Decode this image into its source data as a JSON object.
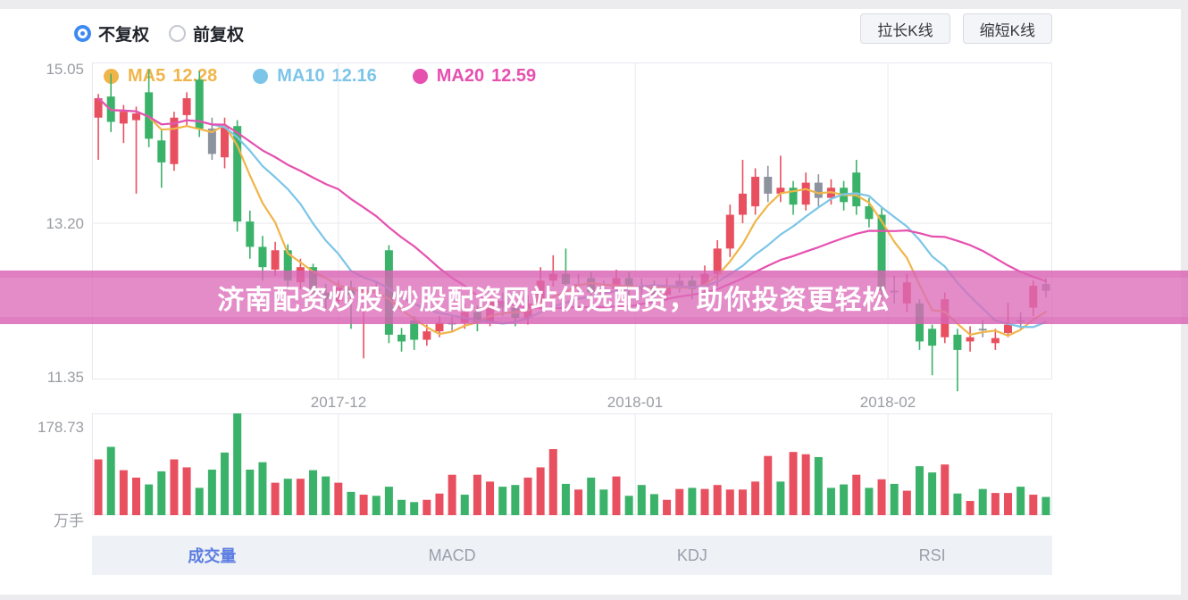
{
  "header": {
    "radios": [
      {
        "label": "不复权",
        "selected": true
      },
      {
        "label": "前复权",
        "selected": false
      }
    ],
    "buttons": [
      {
        "label": "拉长K线"
      },
      {
        "label": "缩短K线"
      }
    ]
  },
  "banner": {
    "text": "济南配资炒股 炒股配资网站优选配资，助你投资更轻松"
  },
  "tabs": [
    {
      "label": "成交量",
      "active": true
    },
    {
      "label": "MACD",
      "active": false
    },
    {
      "label": "KDJ",
      "active": false
    },
    {
      "label": "RSI",
      "active": false
    }
  ],
  "chart_data": {
    "type": "candlestick",
    "title": "",
    "legend": [
      {
        "name": "MA5",
        "value": "12.28",
        "color": "#f0b54a"
      },
      {
        "name": "MA10",
        "value": "12.16",
        "color": "#7cc5e8"
      },
      {
        "name": "MA20",
        "value": "12.59",
        "color": "#e650af"
      }
    ],
    "y_axis": {
      "ticks": [
        "15.05",
        "13.20",
        "11.35"
      ],
      "max": 15.05,
      "min": 11.35
    },
    "x_axis": {
      "ticks": [
        {
          "label": "2017-12",
          "index": 19
        },
        {
          "label": "2018-01",
          "index": 42.5
        },
        {
          "label": "2018-02",
          "index": 62.5
        }
      ]
    },
    "volume_axis": {
      "max_label": "178.73",
      "unit_label": "万手",
      "max": 178.73
    },
    "colors": {
      "up": "#e8505f",
      "down": "#3bb269",
      "flat": "#8d939e",
      "grid": "#e7e9ee",
      "ma5": "#f0b54a",
      "ma10": "#7cc5e8",
      "ma20": "#e650af"
    },
    "candles": [
      [
        14.45,
        14.73,
        13.95,
        14.68,
        ""
      ],
      [
        14.7,
        14.97,
        14.28,
        14.4,
        ""
      ],
      [
        14.38,
        14.6,
        14.15,
        14.52,
        ""
      ],
      [
        14.42,
        14.58,
        13.55,
        14.5,
        ""
      ],
      [
        14.75,
        15.02,
        14.1,
        14.2,
        ""
      ],
      [
        14.18,
        14.3,
        13.62,
        13.92,
        ""
      ],
      [
        13.9,
        14.52,
        13.82,
        14.45,
        ""
      ],
      [
        14.48,
        14.75,
        14.35,
        14.68,
        ""
      ],
      [
        14.9,
        15.0,
        14.22,
        14.32,
        ""
      ],
      [
        14.32,
        14.45,
        13.95,
        14.02,
        "f"
      ],
      [
        13.98,
        14.45,
        13.85,
        14.35,
        ""
      ],
      [
        14.35,
        14.42,
        13.1,
        13.22,
        ""
      ],
      [
        13.22,
        13.35,
        12.78,
        12.92,
        ""
      ],
      [
        12.92,
        13.05,
        12.52,
        12.68,
        ""
      ],
      [
        12.65,
        12.98,
        12.58,
        12.88,
        ""
      ],
      [
        12.88,
        12.95,
        12.4,
        12.52,
        ""
      ],
      [
        12.5,
        12.78,
        12.42,
        12.68,
        ""
      ],
      [
        12.68,
        12.72,
        12.25,
        12.38,
        ""
      ],
      [
        12.38,
        12.48,
        12.18,
        12.3,
        ""
      ],
      [
        12.28,
        12.52,
        12.2,
        12.44,
        ""
      ],
      [
        12.44,
        12.52,
        11.95,
        12.35,
        ""
      ],
      [
        12.35,
        12.46,
        11.6,
        12.42,
        ""
      ],
      [
        12.42,
        12.5,
        12.3,
        12.42,
        "f"
      ],
      [
        12.88,
        12.94,
        11.78,
        11.88,
        ""
      ],
      [
        11.88,
        11.96,
        11.68,
        11.8,
        ""
      ],
      [
        12.05,
        12.1,
        11.7,
        11.82,
        ""
      ],
      [
        11.82,
        12.0,
        11.75,
        11.92,
        ""
      ],
      [
        11.92,
        12.1,
        11.85,
        12.02,
        ""
      ],
      [
        12.02,
        12.1,
        11.92,
        12.02,
        "f"
      ],
      [
        12.02,
        12.25,
        11.95,
        12.15,
        ""
      ],
      [
        12.15,
        12.22,
        11.92,
        12.02,
        ""
      ],
      [
        12.02,
        12.4,
        11.98,
        12.28,
        ""
      ],
      [
        12.28,
        12.38,
        12.1,
        12.2,
        "f"
      ],
      [
        12.2,
        12.28,
        11.98,
        12.08,
        ""
      ],
      [
        12.08,
        12.35,
        12.0,
        12.25,
        ""
      ],
      [
        12.25,
        12.68,
        12.18,
        12.52,
        ""
      ],
      [
        12.52,
        12.82,
        12.45,
        12.6,
        ""
      ],
      [
        12.6,
        12.9,
        12.4,
        12.48,
        ""
      ],
      [
        12.48,
        12.6,
        12.36,
        12.48,
        "f"
      ],
      [
        12.55,
        12.62,
        12.28,
        12.38,
        ""
      ],
      [
        12.38,
        12.52,
        12.3,
        12.42,
        "f"
      ],
      [
        12.42,
        12.65,
        12.35,
        12.55,
        ""
      ],
      [
        12.55,
        12.62,
        12.32,
        12.42,
        ""
      ],
      [
        12.42,
        12.55,
        12.32,
        12.45,
        "f"
      ],
      [
        12.45,
        12.52,
        12.25,
        12.35,
        ""
      ],
      [
        12.35,
        12.55,
        12.28,
        12.45,
        ""
      ],
      [
        12.45,
        12.6,
        12.38,
        12.52,
        "f"
      ],
      [
        12.52,
        12.58,
        12.3,
        12.42,
        ""
      ],
      [
        12.42,
        12.7,
        12.35,
        12.6,
        ""
      ],
      [
        12.6,
        13.0,
        12.45,
        12.9,
        ""
      ],
      [
        12.9,
        13.42,
        12.8,
        13.3,
        ""
      ],
      [
        13.3,
        13.95,
        13.2,
        13.55,
        ""
      ],
      [
        13.4,
        13.85,
        13.3,
        13.75,
        ""
      ],
      [
        13.75,
        13.88,
        13.45,
        13.55,
        "f"
      ],
      [
        13.55,
        14.0,
        13.45,
        13.62,
        ""
      ],
      [
        13.62,
        13.7,
        13.3,
        13.42,
        ""
      ],
      [
        13.42,
        13.8,
        13.35,
        13.68,
        ""
      ],
      [
        13.68,
        13.78,
        13.4,
        13.5,
        "f"
      ],
      [
        13.5,
        13.72,
        13.42,
        13.62,
        ""
      ],
      [
        13.62,
        13.7,
        13.35,
        13.45,
        ""
      ],
      [
        13.8,
        13.95,
        13.3,
        13.4,
        ""
      ],
      [
        13.4,
        13.5,
        13.15,
        13.25,
        ""
      ],
      [
        13.3,
        13.38,
        12.3,
        12.4,
        ""
      ],
      [
        12.4,
        12.58,
        12.25,
        12.4,
        "f"
      ],
      [
        12.25,
        12.6,
        12.15,
        12.5,
        ""
      ],
      [
        12.25,
        12.3,
        11.7,
        11.8,
        ""
      ],
      [
        11.95,
        12.0,
        11.4,
        11.75,
        ""
      ],
      [
        11.85,
        12.38,
        11.78,
        12.3,
        ""
      ],
      [
        11.88,
        11.95,
        11.21,
        11.7,
        ""
      ],
      [
        11.8,
        11.98,
        11.68,
        11.85,
        ""
      ],
      [
        11.95,
        12.05,
        11.85,
        11.95,
        "f"
      ],
      [
        11.78,
        11.95,
        11.7,
        11.84,
        ""
      ],
      [
        11.9,
        12.26,
        11.85,
        12.0,
        ""
      ],
      [
        12.05,
        12.15,
        11.95,
        12.05,
        "f"
      ],
      [
        12.2,
        12.52,
        12.1,
        12.46,
        ""
      ],
      [
        12.48,
        12.55,
        12.32,
        12.4,
        "f"
      ]
    ],
    "volumes": [
      [
        98,
        "r"
      ],
      [
        120,
        "g"
      ],
      [
        79,
        "r"
      ],
      [
        66,
        "r"
      ],
      [
        54,
        "g"
      ],
      [
        77,
        "g"
      ],
      [
        98,
        "r"
      ],
      [
        84,
        "r"
      ],
      [
        48,
        "g"
      ],
      [
        80,
        "g"
      ],
      [
        110,
        "g"
      ],
      [
        178.73,
        "g"
      ],
      [
        80,
        "g"
      ],
      [
        93,
        "g"
      ],
      [
        57,
        "r"
      ],
      [
        64,
        "g"
      ],
      [
        64,
        "r"
      ],
      [
        79,
        "g"
      ],
      [
        68,
        "g"
      ],
      [
        57,
        "r"
      ],
      [
        41,
        "g"
      ],
      [
        36,
        "r"
      ],
      [
        34,
        "g"
      ],
      [
        50,
        "g"
      ],
      [
        27,
        "g"
      ],
      [
        23,
        "g"
      ],
      [
        27,
        "r"
      ],
      [
        38,
        "r"
      ],
      [
        71,
        "r"
      ],
      [
        36,
        "g"
      ],
      [
        71,
        "r"
      ],
      [
        59,
        "r"
      ],
      [
        50,
        "g"
      ],
      [
        53,
        "g"
      ],
      [
        66,
        "r"
      ],
      [
        84,
        "r"
      ],
      [
        116,
        "r"
      ],
      [
        55,
        "g"
      ],
      [
        45,
        "r"
      ],
      [
        66,
        "g"
      ],
      [
        45,
        "g"
      ],
      [
        68,
        "r"
      ],
      [
        34,
        "g"
      ],
      [
        53,
        "g"
      ],
      [
        37,
        "g"
      ],
      [
        27,
        "r"
      ],
      [
        46,
        "r"
      ],
      [
        48,
        "g"
      ],
      [
        46,
        "r"
      ],
      [
        53,
        "r"
      ],
      [
        45,
        "r"
      ],
      [
        45,
        "r"
      ],
      [
        59,
        "r"
      ],
      [
        104,
        "r"
      ],
      [
        59,
        "g"
      ],
      [
        111,
        "r"
      ],
      [
        107,
        "r"
      ],
      [
        102,
        "g"
      ],
      [
        48,
        "g"
      ],
      [
        54,
        "g"
      ],
      [
        71,
        "r"
      ],
      [
        48,
        "g"
      ],
      [
        63,
        "r"
      ],
      [
        55,
        "g"
      ],
      [
        43,
        "r"
      ],
      [
        86,
        "g"
      ],
      [
        75,
        "g"
      ],
      [
        89,
        "r"
      ],
      [
        38,
        "g"
      ],
      [
        25,
        "r"
      ],
      [
        46,
        "g"
      ],
      [
        39,
        "r"
      ],
      [
        39,
        "r"
      ],
      [
        50,
        "g"
      ],
      [
        36,
        "r"
      ],
      [
        32,
        "g"
      ]
    ]
  }
}
